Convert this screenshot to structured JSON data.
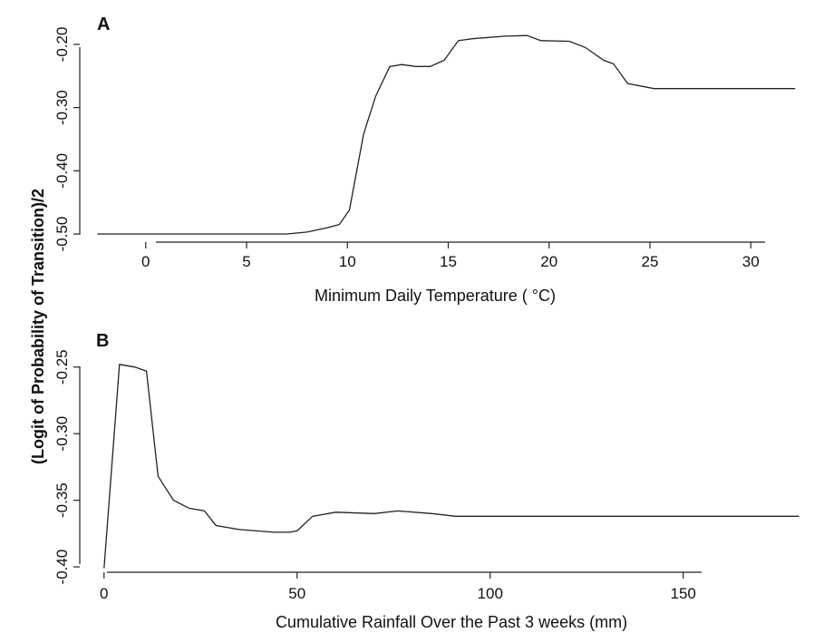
{
  "ylabel": "(Logit of Probability of Transition)/2",
  "chart_data": [
    {
      "type": "line",
      "panel": "A",
      "xlabel": "Minimum Daily Temperature ( °C)",
      "xlim": [
        -3,
        33
      ],
      "ylim": [
        -0.51,
        -0.18
      ],
      "xticks": [
        0,
        5,
        10,
        15,
        20,
        25,
        30
      ],
      "xtick_labels": [
        "0",
        "5",
        "10",
        "15",
        "20",
        "25",
        "30"
      ],
      "yticks": [
        -0.5,
        -0.4,
        -0.3,
        -0.2
      ],
      "ytick_labels": [
        "-0.50",
        "-0.40",
        "-0.30",
        "-0.20"
      ],
      "grid": false,
      "x": [
        -2.4,
        0,
        5,
        7,
        8,
        9,
        9.6,
        10.1,
        10.8,
        11.4,
        12.1,
        12.7,
        13.4,
        14.1,
        14.8,
        15.5,
        16.2,
        17.8,
        18.9,
        19.6,
        21,
        21.8,
        22.7,
        23.2,
        23.9,
        25.2,
        28,
        32.2
      ],
      "y": [
        -0.5,
        -0.5,
        -0.5,
        -0.5,
        -0.497,
        -0.49,
        -0.485,
        -0.462,
        -0.342,
        -0.282,
        -0.235,
        -0.232,
        -0.235,
        -0.235,
        -0.225,
        -0.194,
        -0.191,
        -0.187,
        -0.186,
        -0.194,
        -0.195,
        -0.205,
        -0.225,
        -0.231,
        -0.262,
        -0.27,
        -0.27,
        -0.27
      ]
    },
    {
      "type": "line",
      "panel": "B",
      "xlabel": "Cumulative Rainfall Over the Past 3 weeks (mm)",
      "xlim": [
        -3,
        182
      ],
      "ylim": [
        -0.402,
        -0.242
      ],
      "xticks": [
        0,
        50,
        100,
        150
      ],
      "xtick_labels": [
        "0",
        "50",
        "100",
        "150"
      ],
      "yticks": [
        -0.4,
        -0.35,
        -0.3,
        -0.25
      ],
      "ytick_labels": [
        "-0.40",
        "-0.35",
        "-0.30",
        "-0.25"
      ],
      "grid": false,
      "x": [
        0,
        4,
        8,
        11,
        14,
        18,
        22,
        26,
        29,
        35,
        44,
        48,
        50,
        54,
        60,
        70,
        76,
        85,
        91,
        110,
        180
      ],
      "y": [
        -0.401,
        -0.248,
        -0.25,
        -0.253,
        -0.332,
        -0.35,
        -0.356,
        -0.358,
        -0.369,
        -0.372,
        -0.374,
        -0.374,
        -0.373,
        -0.362,
        -0.359,
        -0.36,
        -0.358,
        -0.36,
        -0.362,
        -0.362,
        -0.362
      ]
    }
  ]
}
